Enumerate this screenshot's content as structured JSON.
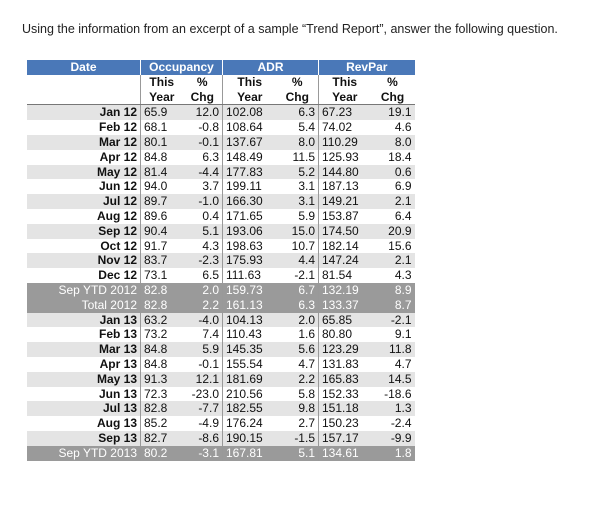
{
  "prompt": "Using the information from an excerpt of a sample “Trend Report”, answer the following question.",
  "table": {
    "headers": {
      "date": "Date",
      "occupancy": "Occupancy",
      "adr": "ADR",
      "revpar": "RevPar"
    },
    "subheaders": {
      "this_top": "This",
      "this_bottom": "Year",
      "pct_top": "%",
      "pct_bottom": "Chg"
    },
    "rows": [
      {
        "label": "Jan 12",
        "occ": "65.9",
        "occ_chg": "12.0",
        "adr": "102.08",
        "adr_chg": "6.3",
        "rev": "67.23",
        "rev_chg": "19.1",
        "style": "stripe"
      },
      {
        "label": "Feb 12",
        "occ": "68.1",
        "occ_chg": "-0.8",
        "adr": "108.64",
        "adr_chg": "5.4",
        "rev": "74.02",
        "rev_chg": "4.6",
        "style": ""
      },
      {
        "label": "Mar 12",
        "occ": "80.1",
        "occ_chg": "-0.1",
        "adr": "137.67",
        "adr_chg": "8.0",
        "rev": "110.29",
        "rev_chg": "8.0",
        "style": "stripe"
      },
      {
        "label": "Apr 12",
        "occ": "84.8",
        "occ_chg": "6.3",
        "adr": "148.49",
        "adr_chg": "11.5",
        "rev": "125.93",
        "rev_chg": "18.4",
        "style": ""
      },
      {
        "label": "May 12",
        "occ": "81.4",
        "occ_chg": "-4.4",
        "adr": "177.83",
        "adr_chg": "5.2",
        "rev": "144.80",
        "rev_chg": "0.6",
        "style": "stripe"
      },
      {
        "label": "Jun 12",
        "occ": "94.0",
        "occ_chg": "3.7",
        "adr": "199.11",
        "adr_chg": "3.1",
        "rev": "187.13",
        "rev_chg": "6.9",
        "style": ""
      },
      {
        "label": "Jul 12",
        "occ": "89.7",
        "occ_chg": "-1.0",
        "adr": "166.30",
        "adr_chg": "3.1",
        "rev": "149.21",
        "rev_chg": "2.1",
        "style": "stripe"
      },
      {
        "label": "Aug 12",
        "occ": "89.6",
        "occ_chg": "0.4",
        "adr": "171.65",
        "adr_chg": "5.9",
        "rev": "153.87",
        "rev_chg": "6.4",
        "style": ""
      },
      {
        "label": "Sep 12",
        "occ": "90.4",
        "occ_chg": "5.1",
        "adr": "193.06",
        "adr_chg": "15.0",
        "rev": "174.50",
        "rev_chg": "20.9",
        "style": "stripe"
      },
      {
        "label": "Oct 12",
        "occ": "91.7",
        "occ_chg": "4.3",
        "adr": "198.63",
        "adr_chg": "10.7",
        "rev": "182.14",
        "rev_chg": "15.6",
        "style": ""
      },
      {
        "label": "Nov 12",
        "occ": "83.7",
        "occ_chg": "-2.3",
        "adr": "175.93",
        "adr_chg": "4.4",
        "rev": "147.24",
        "rev_chg": "2.1",
        "style": "stripe"
      },
      {
        "label": "Dec 12",
        "occ": "73.1",
        "occ_chg": "6.5",
        "adr": "111.63",
        "adr_chg": "-2.1",
        "rev": "81.54",
        "rev_chg": "4.3",
        "style": ""
      },
      {
        "label": "Sep YTD 2012",
        "occ": "82.8",
        "occ_chg": "2.0",
        "adr": "159.73",
        "adr_chg": "6.7",
        "rev": "132.19",
        "rev_chg": "8.9",
        "style": "summary"
      },
      {
        "label": "Total 2012",
        "occ": "82.8",
        "occ_chg": "2.2",
        "adr": "161.13",
        "adr_chg": "6.3",
        "rev": "133.37",
        "rev_chg": "8.7",
        "style": "summary"
      },
      {
        "label": "Jan 13",
        "occ": "63.2",
        "occ_chg": "-4.0",
        "adr": "104.13",
        "adr_chg": "2.0",
        "rev": "65.85",
        "rev_chg": "-2.1",
        "style": "stripe"
      },
      {
        "label": "Feb 13",
        "occ": "73.2",
        "occ_chg": "7.4",
        "adr": "110.43",
        "adr_chg": "1.6",
        "rev": "80.80",
        "rev_chg": "9.1",
        "style": ""
      },
      {
        "label": "Mar 13",
        "occ": "84.8",
        "occ_chg": "5.9",
        "adr": "145.35",
        "adr_chg": "5.6",
        "rev": "123.29",
        "rev_chg": "11.8",
        "style": "stripe"
      },
      {
        "label": "Apr 13",
        "occ": "84.8",
        "occ_chg": "-0.1",
        "adr": "155.54",
        "adr_chg": "4.7",
        "rev": "131.83",
        "rev_chg": "4.7",
        "style": ""
      },
      {
        "label": "May 13",
        "occ": "91.3",
        "occ_chg": "12.1",
        "adr": "181.69",
        "adr_chg": "2.2",
        "rev": "165.83",
        "rev_chg": "14.5",
        "style": "stripe"
      },
      {
        "label": "Jun 13",
        "occ": "72.3",
        "occ_chg": "-23.0",
        "adr": "210.56",
        "adr_chg": "5.8",
        "rev": "152.33",
        "rev_chg": "-18.6",
        "style": ""
      },
      {
        "label": "Jul 13",
        "occ": "82.8",
        "occ_chg": "-7.7",
        "adr": "182.55",
        "adr_chg": "9.8",
        "rev": "151.18",
        "rev_chg": "1.3",
        "style": "stripe"
      },
      {
        "label": "Aug 13",
        "occ": "85.2",
        "occ_chg": "-4.9",
        "adr": "176.24",
        "adr_chg": "2.7",
        "rev": "150.23",
        "rev_chg": "-2.4",
        "style": ""
      },
      {
        "label": "Sep 13",
        "occ": "82.7",
        "occ_chg": "-8.6",
        "adr": "190.15",
        "adr_chg": "-1.5",
        "rev": "157.17",
        "rev_chg": "-9.9",
        "style": "stripe"
      },
      {
        "label": "Sep YTD 2013",
        "occ": "80.2",
        "occ_chg": "-3.1",
        "adr": "167.81",
        "adr_chg": "5.1",
        "rev": "134.61",
        "rev_chg": "1.8",
        "style": "summary"
      }
    ]
  },
  "colors": {
    "header_bg": "#4a78b8",
    "stripe_bg": "#e4e4e4",
    "summary_bg": "#9a9a9a"
  }
}
